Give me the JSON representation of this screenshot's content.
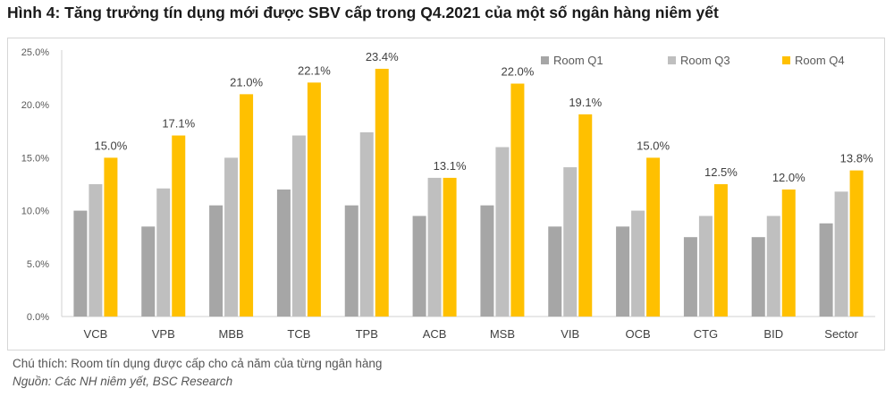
{
  "figure": {
    "title": "Hình 4: Tăng trưởng tín dụng mới được SBV cấp trong Q4.2021 của một số ngân hàng niêm yết",
    "note": "Chú thích: Room tín dụng được cấp cho cả năm của từng ngân hàng",
    "source": "Nguồn: Các NH niêm yết, BSC Research"
  },
  "chart_data": {
    "type": "bar",
    "categories": [
      "VCB",
      "VPB",
      "MBB",
      "TCB",
      "TPB",
      "ACB",
      "MSB",
      "VIB",
      "OCB",
      "CTG",
      "BID",
      "Sector"
    ],
    "series": [
      {
        "name": "Room Q1",
        "color": "#a6a6a6",
        "values": [
          10.0,
          8.5,
          10.5,
          12.0,
          10.5,
          9.5,
          10.5,
          8.5,
          8.5,
          7.5,
          7.5,
          8.8
        ]
      },
      {
        "name": "Room Q3",
        "color": "#bfbfbf",
        "values": [
          12.5,
          12.1,
          15.0,
          17.1,
          17.4,
          13.1,
          16.0,
          14.1,
          10.0,
          9.5,
          9.5,
          11.8
        ]
      },
      {
        "name": "Room Q4",
        "color": "#ffc000",
        "values": [
          15.0,
          17.1,
          21.0,
          22.1,
          23.4,
          13.1,
          22.0,
          19.1,
          15.0,
          12.5,
          12.0,
          13.8
        ]
      }
    ],
    "data_labels": [
      "15.0%",
      "17.1%",
      "21.0%",
      "22.1%",
      "23.4%",
      "13.1%",
      "22.0%",
      "19.1%",
      "15.0%",
      "12.5%",
      "12.0%",
      "13.8%"
    ],
    "y_ticks": [
      "0.0%",
      "5.0%",
      "10.0%",
      "15.0%",
      "20.0%",
      "25.0%"
    ],
    "ylim": [
      0,
      25
    ],
    "xlabel": "",
    "ylabel": "",
    "grid": false,
    "legend_position": "top-right"
  }
}
